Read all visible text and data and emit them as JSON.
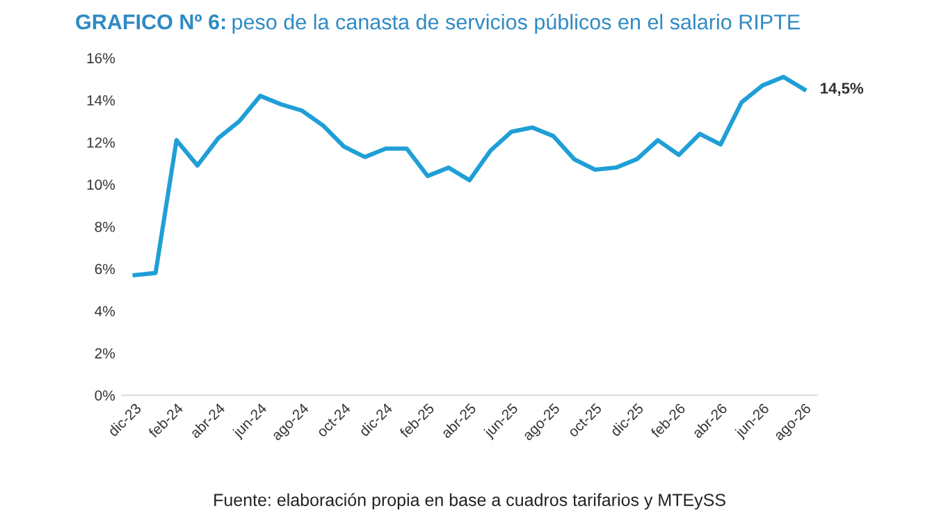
{
  "chart_data": {
    "type": "line",
    "title": "GRAFICO Nº 6: peso de la canasta de servicios públicos en el salario RIPTE",
    "categories": [
      "dic-23",
      null,
      "feb-24",
      null,
      "abr-24",
      null,
      "jun-24",
      null,
      "ago-24",
      null,
      "oct-24",
      null,
      "dic-24",
      null,
      "feb-25",
      null,
      "abr-25",
      null,
      "jun-25",
      null,
      "ago-25",
      null,
      "oct-25",
      null,
      "dic-25",
      null,
      "feb-26",
      null,
      "abr-26",
      null,
      "jun-26",
      null,
      "ago-26"
    ],
    "series": [
      {
        "color": "#1f9fd6",
        "values": [
          5.7,
          5.8,
          12.1,
          10.9,
          12.2,
          13.0,
          14.2,
          13.8,
          13.5,
          12.8,
          11.8,
          11.3,
          11.7,
          11.7,
          10.4,
          10.8,
          10.2,
          11.6,
          12.5,
          12.7,
          12.3,
          11.2,
          10.7,
          10.8,
          11.2,
          12.1,
          11.4,
          12.4,
          11.9,
          13.9,
          14.7,
          15.1,
          14.5
        ],
        "value_labels": [
          null,
          null,
          null,
          null,
          null,
          null,
          null,
          null,
          null,
          null,
          null,
          null,
          null,
          null,
          null,
          null,
          null,
          null,
          null,
          null,
          null,
          null,
          null,
          null,
          null,
          null,
          null,
          null,
          null,
          null,
          null,
          null,
          "14,5%"
        ]
      }
    ],
    "ylim": [
      0,
      16
    ],
    "yticks": [
      {
        "value": 0,
        "label": "0%"
      },
      {
        "value": 2,
        "label": "2%"
      },
      {
        "value": 4,
        "label": "4%"
      },
      {
        "value": 6,
        "label": "6%"
      },
      {
        "value": 8,
        "label": "8%"
      },
      {
        "value": 10,
        "label": "10%"
      },
      {
        "value": 12,
        "label": "12%"
      },
      {
        "value": 14,
        "label": "14%"
      },
      {
        "value": 16,
        "label": "16%"
      }
    ],
    "grid": false,
    "legend": false,
    "marker": "none",
    "line_style": "solid",
    "annotations": [
      "Fuente: elaboración propia en base a cuadros tarifarios y MTEySS"
    ]
  }
}
